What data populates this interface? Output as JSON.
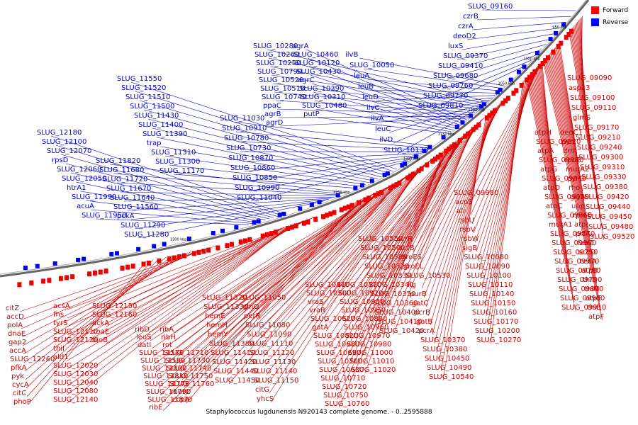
{
  "title": "Staphylococcus lugdunensis N920143 complete genome. - 0..2595888",
  "legend": {
    "forward_label": "Forward",
    "reverse_label": "Reverse",
    "forward_color": "#ff0000",
    "reverse_color": "#0000ff"
  },
  "ticks": [
    "950 kbp",
    "1000 kbp",
    "1050 kbp",
    "1100 kbp",
    "1150 kbp",
    "1200 kbp",
    "1250 kbp",
    "1300 kbp"
  ],
  "reverse_labels": [
    "SLUG_09160",
    "czrB",
    "czrA",
    "deoD2",
    "luxS",
    "SLUG_09370",
    "SLUG_09410",
    "SLUG_09680",
    "SLUG_09760",
    "SLUG_09770",
    "SLUG_09810",
    "ilvB",
    "SLUG_10050",
    "leuA",
    "leuB",
    "leuD",
    "ilvC",
    "ilvA",
    "leuC",
    "ilvD",
    "SLUG_10130",
    "SLUG_10280",
    "SLUG_10260",
    "SLUG_10250",
    "SLUG_10790",
    "SLUG_10520",
    "SLUG_10510",
    "SLUG_10740",
    "ppaC",
    "agrB",
    "agrD",
    "agrA",
    "SLUG_10460",
    "SLUG_10120",
    "SLUG_10430",
    "agrC",
    "SLUG_10390",
    "SLUG_10310",
    "SLUG_10480",
    "putP",
    "SLUG_11030",
    "SLUG_10910",
    "SLUG_10780",
    "SLUG_10730",
    "SLUG_10870",
    "SLUG_10860",
    "SLUG_10850",
    "SLUG_10990",
    "SLUG_11040",
    "SLUG_11550",
    "SLUG_11520",
    "SLUG_11510",
    "SLUG_11500",
    "SLUG_11430",
    "SLUG_11400",
    "SLUG_11390",
    "trap",
    "SLUG_11310",
    "SLUG_11300",
    "SLUG_11170",
    "SLUG_12180",
    "SLUG_12100",
    "SLUG_12070",
    "rpsD",
    "SLUG_12060",
    "SLUG_12050",
    "htrA1",
    "SLUG_11990",
    "acuA",
    "SLUG_11950",
    "SLUG_11820",
    "SLUG_11680",
    "SLUG_11720",
    "SLUG_11670",
    "SLUG_11640",
    "SLUG_11560",
    "pckA",
    "SLUG_11290",
    "SLUG_11280"
  ],
  "forward_right": [
    "SLUG_09090",
    "asp23",
    "SLUG_09100",
    "SLUG_09110",
    "glmS",
    "SLUG_09170",
    "SLUG_09210",
    "SLUG_09240",
    "SLUG_09300",
    "SLUG_09310",
    "SLUG_09330",
    "SLUG_09380",
    "SLUG_09420",
    "SLUG_09440",
    "SLUG_09450",
    "SLUG_09480",
    "SLUG_09520",
    "deoC1",
    "pyn",
    "drm",
    "rpoE",
    "murA2",
    "pyrG",
    "rho",
    "glyA",
    "upp",
    "rpmE",
    "atpI",
    "prfA",
    "fabZ",
    "sceD",
    "tenA",
    "atpB",
    "thiD",
    "thiM",
    "atpE",
    "thiE",
    "atpF",
    "atpH",
    "SLUG_09820",
    "atpA",
    "SLUG_09830",
    "atpG",
    "SLUG_09840",
    "atpD",
    "SLUG_09850",
    "atpC",
    "SLUG_09860",
    "murA1",
    "SLUG_09870",
    "SLUG_09960",
    "SLUG_09750",
    "SLUG_09970",
    "SLUG_09780",
    "SLUG_09790",
    "SLUG_09800",
    "SLUG_09900",
    "SLUG_09910"
  ],
  "forward_mid": [
    "SLUG_09980",
    "acpS",
    "alr",
    "rsbU",
    "rsbV",
    "rsbW",
    "sigB",
    "SLUG_10080",
    "SLUG_10090",
    "SLUG_10100",
    "SLUG_10110",
    "SLUG_10140",
    "SLUG_10150",
    "SLUG_10160",
    "SLUG_10170",
    "SLUG_10200",
    "SLUG_10270",
    "scrR",
    "scrB",
    "groES",
    "groEL",
    "SLUG_10530",
    "lig",
    "purB",
    "gatC",
    "pcrB",
    "gatB",
    "pcrA",
    "SLUG_10370",
    "SLUG_10380",
    "SLUG_10450",
    "SLUG_10490",
    "SLUG_10540",
    "SLUG_10550",
    "SLUG_10560",
    "SLUG_10580",
    "SLUG_10320",
    "SLUG_10330",
    "SLUG_10340",
    "SLUG_10350",
    "SLUG_10360",
    "SLUG_10400",
    "SLUG_10410",
    "SLUG_10420",
    "SLUG_10440",
    "SLUG_10500",
    "vraS",
    "vraR",
    "SLUG_10620",
    "gatA",
    "SLUG_10820",
    "SLUG_10680",
    "SLUG_10690",
    "SLUG_10700",
    "SLUG_10630",
    "SLUG_10710",
    "SLUG_10720",
    "SLUG_10750",
    "SLUG_10760",
    "SLUG_10770",
    "SLUG_10920",
    "SLUG_10930",
    "SLUG_10950",
    "SLUG_10880",
    "SLUG_10960",
    "SLUG_10970",
    "SLUG_10980",
    "SLUG_11000",
    "SLUG_11010",
    "SLUG_11020"
  ],
  "forward_low": [
    "SLUG_11050",
    "glnQ",
    "perR",
    "SLUG_11080",
    "SLUG_11090",
    "SLUG_11110",
    "SLUG_11120",
    "SLUG_11130",
    "SLUG_11140",
    "SLUG_11150",
    "citG",
    "yhcS",
    "SLUG_11320",
    "SLUG_11330",
    "hemE",
    "hemH",
    "hemY",
    "SLUG_11380",
    "SLUG_11410",
    "SLUG_11420",
    "SLUG_11440",
    "SLUG_11450",
    "ribD",
    "leuS",
    "datI",
    "SLUG_11570",
    "SLUG_11580",
    "SLUG_11800",
    "SLUG_11810",
    "SLUG_11770",
    "SLUG_11790",
    "SLUG_11830",
    "ribE",
    "ribA",
    "ribH",
    "rot",
    "SLUG_11710",
    "SLUG_11730",
    "SLUG_11740",
    "SLUG_11750",
    "SLUG_11760",
    "murC",
    "ccpA",
    "acsA",
    "fhs",
    "tyrS",
    "SLUG_12110",
    "SLUG_12120",
    "thiI",
    "ald1",
    "SLUG_12020",
    "SLUG_12030",
    "SLUG_12040",
    "SLUG_12080",
    "SLUG_12140",
    "SLUG_12150",
    "SLUG_12160",
    "ackA",
    "coaE",
    "bioB",
    "citZ",
    "accD",
    "polA",
    "dnaE",
    "gap2",
    "accA",
    "SLUG_12260",
    "pfkA",
    "pyk",
    "cycA",
    "citC",
    "phoP"
  ]
}
